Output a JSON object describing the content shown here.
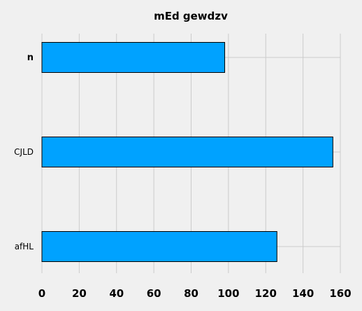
{
  "chart_data": {
    "type": "bar",
    "orientation": "horizontal",
    "title": "mEd gewdzv",
    "xlabel": "",
    "ylabel": "",
    "categories": [
      "n",
      "CJLD",
      "afHL"
    ],
    "values": [
      98,
      156,
      126
    ],
    "xlim": [
      0,
      160
    ],
    "xticks": [
      "0",
      "20",
      "40",
      "60",
      "80",
      "100",
      "120",
      "140",
      "160"
    ],
    "grid": true,
    "legend": "none",
    "bar_color": "#00a2ff",
    "edge_color": "#000000",
    "background_color": "#f0f0f0",
    "grid_color": "#cbcbcb"
  }
}
